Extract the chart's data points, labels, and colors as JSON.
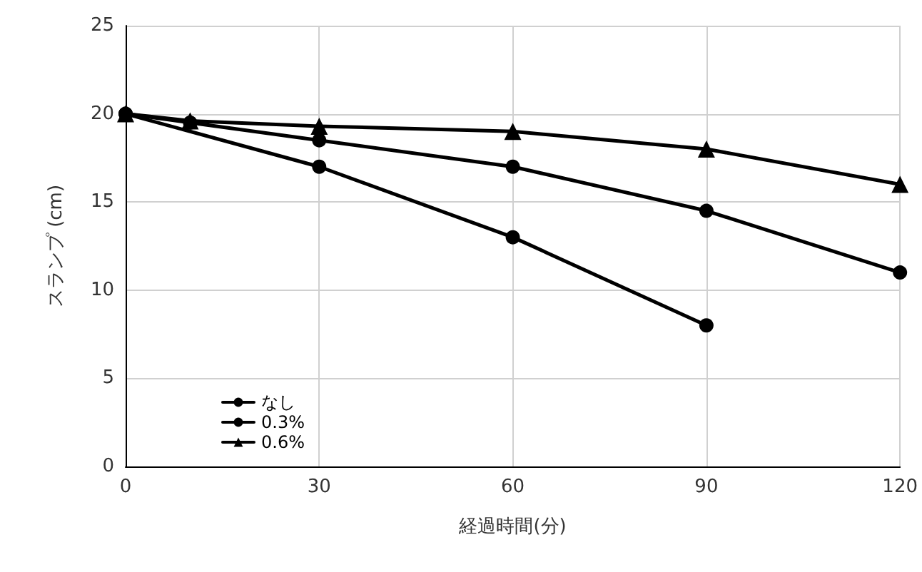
{
  "chart_data": {
    "type": "line",
    "xlabel": "経過時間(分)",
    "ylabel": "スランプ (cm)",
    "xlim": [
      0,
      120
    ],
    "xticks": [
      0,
      30,
      60,
      90,
      120
    ],
    "ylim": [
      0,
      25
    ],
    "yticks": [
      0,
      5,
      10,
      15,
      20,
      25
    ],
    "grid": true,
    "legend": "bottom left",
    "line_style": "solid",
    "series": [
      {
        "name": "なし",
        "color": "#000000",
        "marker": "circle",
        "x": [
          0,
          30,
          60,
          90
        ],
        "values": [
          20,
          17,
          13,
          8
        ]
      },
      {
        "name": "0.3%",
        "color": "#000000",
        "marker": "circle",
        "x": [
          0,
          10,
          30,
          60,
          90,
          120
        ],
        "values": [
          20,
          19.5,
          18.5,
          17,
          14.5,
          11
        ]
      },
      {
        "name": "0.6%",
        "color": "#000000",
        "marker": "triangle",
        "x": [
          0,
          10,
          30,
          60,
          90,
          120
        ],
        "values": [
          20,
          19.6,
          19.3,
          19,
          18,
          16
        ]
      }
    ]
  }
}
